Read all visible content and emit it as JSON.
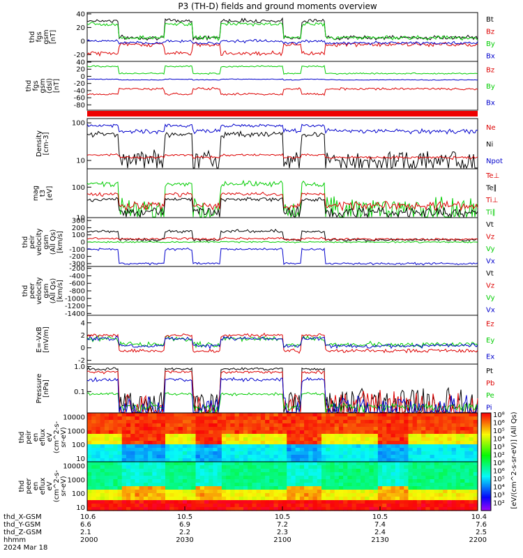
{
  "title": "P3 (TH-D) fields and ground moments overview",
  "colors": {
    "black": "#000000",
    "red": "#dd0000",
    "green": "#00cc00",
    "blue": "#0000cc"
  },
  "panels": [
    {
      "id": "fgs-gsm",
      "ylabel": [
        "thd",
        "fgs",
        "gsm",
        "[nT]"
      ],
      "ylim": [
        -30,
        42
      ],
      "scale": "linear",
      "ticks": [
        "40",
        "20",
        "0",
        "-20"
      ],
      "tick_values": [
        40,
        20,
        0,
        -20
      ],
      "legend": [
        {
          "label": "Bt",
          "color": "black"
        },
        {
          "label": "Bz",
          "color": "red"
        },
        {
          "label": "By",
          "color": "green"
        },
        {
          "label": "Bx",
          "color": "blue"
        }
      ]
    },
    {
      "id": "fgs-gsm-dsl",
      "ylabel": [
        "thd",
        "fgs",
        "gsm",
        "(dsl)",
        "[nT]"
      ],
      "ylim": [
        -95,
        42
      ],
      "scale": "linear",
      "ticks": [
        "40",
        "20",
        "0",
        "-20",
        "-40",
        "-60",
        "-80"
      ],
      "tick_values": [
        40,
        20,
        0,
        -20,
        -40,
        -60,
        -80
      ],
      "legend": [
        {
          "label": "Bz",
          "color": "red"
        },
        {
          "label": "By",
          "color": "green"
        },
        {
          "label": "Bx",
          "color": "blue"
        }
      ]
    },
    {
      "id": "density",
      "ylabel": [
        "Density",
        "[cm-3]"
      ],
      "ylim": [
        6,
        130
      ],
      "scale": "log",
      "ticks": [
        "100",
        "10"
      ],
      "tick_values": [
        100,
        10
      ],
      "legend": [
        {
          "label": "Ne",
          "color": "red"
        },
        {
          "label": "Ni",
          "color": "black"
        },
        {
          "label": "Npot",
          "color": "blue"
        }
      ]
    },
    {
      "id": "temperature",
      "ylabel": [
        "mag",
        "t3",
        "[eV]"
      ],
      "ylim": [
        10,
        400
      ],
      "scale": "log",
      "ticks": [
        "100",
        "10"
      ],
      "tick_values": [
        100,
        10
      ],
      "legend": [
        {
          "label": "Te⊥",
          "color": "red"
        },
        {
          "label": "Te∥",
          "color": "black"
        },
        {
          "label": "Ti⊥",
          "color": "red"
        },
        {
          "label": "Ti∥",
          "color": "green"
        }
      ]
    },
    {
      "id": "peir-velocity",
      "ylabel": [
        "thd",
        "peir",
        "velocity",
        "gsm",
        "(All Qs)",
        "[km/s]"
      ],
      "ylim": [
        -340,
        340
      ],
      "scale": "linear",
      "ticks": [
        "300",
        "200",
        "100",
        "0",
        "-100",
        "-200",
        "-300"
      ],
      "tick_values": [
        300,
        200,
        100,
        0,
        -100,
        -200,
        -300
      ],
      "legend": [
        {
          "label": "Vt",
          "color": "black"
        },
        {
          "label": "Vz",
          "color": "red"
        },
        {
          "label": "Vy",
          "color": "green"
        },
        {
          "label": "Vx",
          "color": "blue"
        }
      ]
    },
    {
      "id": "peer-velocity",
      "ylabel": [
        "thd",
        "peer",
        "velocity",
        "gsm",
        "(All Qs)",
        "[km/s]"
      ],
      "ylim": [
        -1450,
        -150
      ],
      "scale": "linear",
      "ticks": [
        "-200",
        "-400",
        "-600",
        "-800",
        "-1000",
        "-1200",
        "-1400"
      ],
      "tick_values": [
        -200,
        -400,
        -600,
        -800,
        -1000,
        -1200,
        -1400
      ],
      "legend": [
        {
          "label": "Vt",
          "color": "black"
        },
        {
          "label": "Vz",
          "color": "red"
        },
        {
          "label": "Vy",
          "color": "green"
        },
        {
          "label": "Vx",
          "color": "blue"
        }
      ]
    },
    {
      "id": "efield",
      "ylabel": [
        "E=-VxB",
        "[mV/m]"
      ],
      "ylim": [
        -2.6,
        5.2
      ],
      "scale": "linear",
      "ticks": [
        "4",
        "2",
        "0",
        "-2"
      ],
      "tick_values": [
        4,
        2,
        0,
        -2
      ],
      "legend": [
        {
          "label": "Ez",
          "color": "red"
        },
        {
          "label": "Ey",
          "color": "green"
        },
        {
          "label": "Ex",
          "color": "blue"
        }
      ]
    },
    {
      "id": "pressure",
      "ylabel": [
        "Pressure",
        "[nPa]"
      ],
      "ylim": [
        0.014,
        1.25
      ],
      "scale": "log",
      "ticks": [
        "1.0",
        "0.1"
      ],
      "tick_values": [
        1.0,
        0.1
      ],
      "legend": [
        {
          "label": "Pt",
          "color": "black"
        },
        {
          "label": "Pb",
          "color": "red"
        },
        {
          "label": "Pe",
          "color": "green"
        },
        {
          "label": "Pi",
          "color": "blue"
        }
      ]
    },
    {
      "id": "peir-spec",
      "ylabel": [
        "thd",
        "peir",
        "en",
        "eflux",
        "eV",
        "(cm^2-s-",
        "sr-eV)"
      ],
      "ylim": [
        6,
        20000
      ],
      "scale": "log",
      "ticks": [
        "10000",
        "1000",
        "100",
        "10"
      ],
      "tick_values": [
        10000,
        1000,
        100,
        10
      ],
      "legend": []
    },
    {
      "id": "peer-spec",
      "ylabel": [
        "thd",
        "peer",
        "en",
        "eflux",
        "eV",
        "(cm^2-s-",
        "sr-eV)"
      ],
      "ylim": [
        6,
        20000
      ],
      "scale": "log",
      "ticks": [
        "10000",
        "1000",
        "100",
        "10"
      ],
      "tick_values": [
        10000,
        1000,
        100,
        10
      ],
      "legend": []
    }
  ],
  "colorbar": {
    "label": "[eV/(cm^2-s-sr-eV)] (All Qs)",
    "tick_labels": [
      "10⁸",
      "10⁶",
      "10⁵",
      "10⁴",
      "10³",
      "10²",
      "10⁸",
      "10⁶",
      "10⁵",
      "10⁴",
      "10³",
      "10²"
    ]
  },
  "footer": {
    "row_labels": [
      "thd_X-GSM",
      "thd_Y-GSM",
      "thd_Z-GSM",
      "hhmm",
      "2024 Mar 18"
    ],
    "columns": [
      {
        "x": "10.6",
        "y": "6.6",
        "z": "2.1",
        "t": "2000",
        "pos": 0
      },
      {
        "x": "10.5",
        "y": "6.9",
        "z": "2.2",
        "t": "2030",
        "pos": 0.25
      },
      {
        "x": "10.5",
        "y": "7.2",
        "z": "2.3",
        "t": "2100",
        "pos": 0.5
      },
      {
        "x": "10.5",
        "y": "7.4",
        "z": "2.4",
        "t": "2130",
        "pos": 0.75
      },
      {
        "x": "10.4",
        "y": "7.6",
        "z": "2.5",
        "t": "2200",
        "pos": 1
      }
    ]
  },
  "chart_data": {
    "type": "line",
    "title": "P3 (TH-D) fields and ground moments overview",
    "time_range": [
      "2000",
      "2200"
    ],
    "x_ticks": [
      "2000",
      "2030",
      "2100",
      "2130",
      "2200"
    ],
    "intervals_minutes": [
      0,
      12,
      18,
      22,
      26,
      38,
      50,
      58,
      66,
      78,
      120
    ],
    "series_summary": [
      {
        "panel": "fgs-gsm",
        "name": "Bt",
        "values": [
          30,
          30,
          5,
          32,
          8,
          38,
          40,
          10,
          8,
          8,
          8
        ]
      },
      {
        "panel": "fgs-gsm",
        "name": "Bz",
        "values": [
          -20,
          -25,
          -5,
          -22,
          -5,
          -28,
          -30,
          -10,
          -5,
          -3,
          -3
        ]
      },
      {
        "panel": "fgs-gsm",
        "name": "By",
        "values": [
          20,
          25,
          5,
          28,
          0,
          32,
          33,
          8,
          5,
          4,
          4
        ]
      },
      {
        "panel": "fgs-gsm",
        "name": "Bx",
        "values": [
          0,
          -2,
          0,
          -5,
          -5,
          -3,
          -5,
          -3,
          -3,
          -3,
          -3
        ]
      },
      {
        "panel": "density",
        "name": "Ni",
        "values": [
          60,
          30,
          8,
          30,
          8,
          40,
          45,
          12,
          10,
          12,
          14
        ]
      },
      {
        "panel": "density",
        "name": "Npot",
        "values": [
          90,
          90,
          70,
          75,
          50,
          70,
          70,
          60,
          65,
          80,
          95
        ]
      },
      {
        "panel": "pressure",
        "name": "Pt",
        "values": [
          0.9,
          0.9,
          0.04,
          0.8,
          0.04,
          0.9,
          0.9,
          0.03,
          0.025,
          0.022,
          0.02
        ]
      }
    ]
  }
}
